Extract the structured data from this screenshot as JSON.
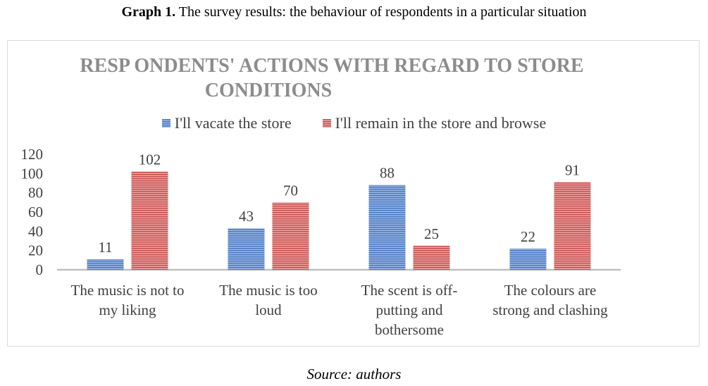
{
  "caption": {
    "prefix": "Graph 1.",
    "text": "The survey results: the behaviour of respondents in a particular situation"
  },
  "source": "Source: authors",
  "chart_data": {
    "type": "bar",
    "title_lines": [
      "RESP ONDENTS' ACTIONS WITH REGARD TO STORE",
      "CONDITIONS"
    ],
    "categories": [
      [
        "The music is not to",
        "my liking"
      ],
      [
        "The music is too",
        "loud"
      ],
      [
        "The scent is off-",
        "putting and",
        "bothersome"
      ],
      [
        "The colours are",
        "strong and clashing"
      ]
    ],
    "series": [
      {
        "name": "I'll vacate the store",
        "values": [
          11,
          43,
          88,
          22
        ],
        "color": "#4a78c0"
      },
      {
        "name": "I'll remain in the store and browse",
        "values": [
          102,
          70,
          25,
          91
        ],
        "color": "#c5504f"
      }
    ],
    "yticks": [
      0,
      20,
      40,
      60,
      80,
      100,
      120
    ],
    "ylim": [
      0,
      120
    ],
    "legend_position": "top",
    "grid": false
  }
}
